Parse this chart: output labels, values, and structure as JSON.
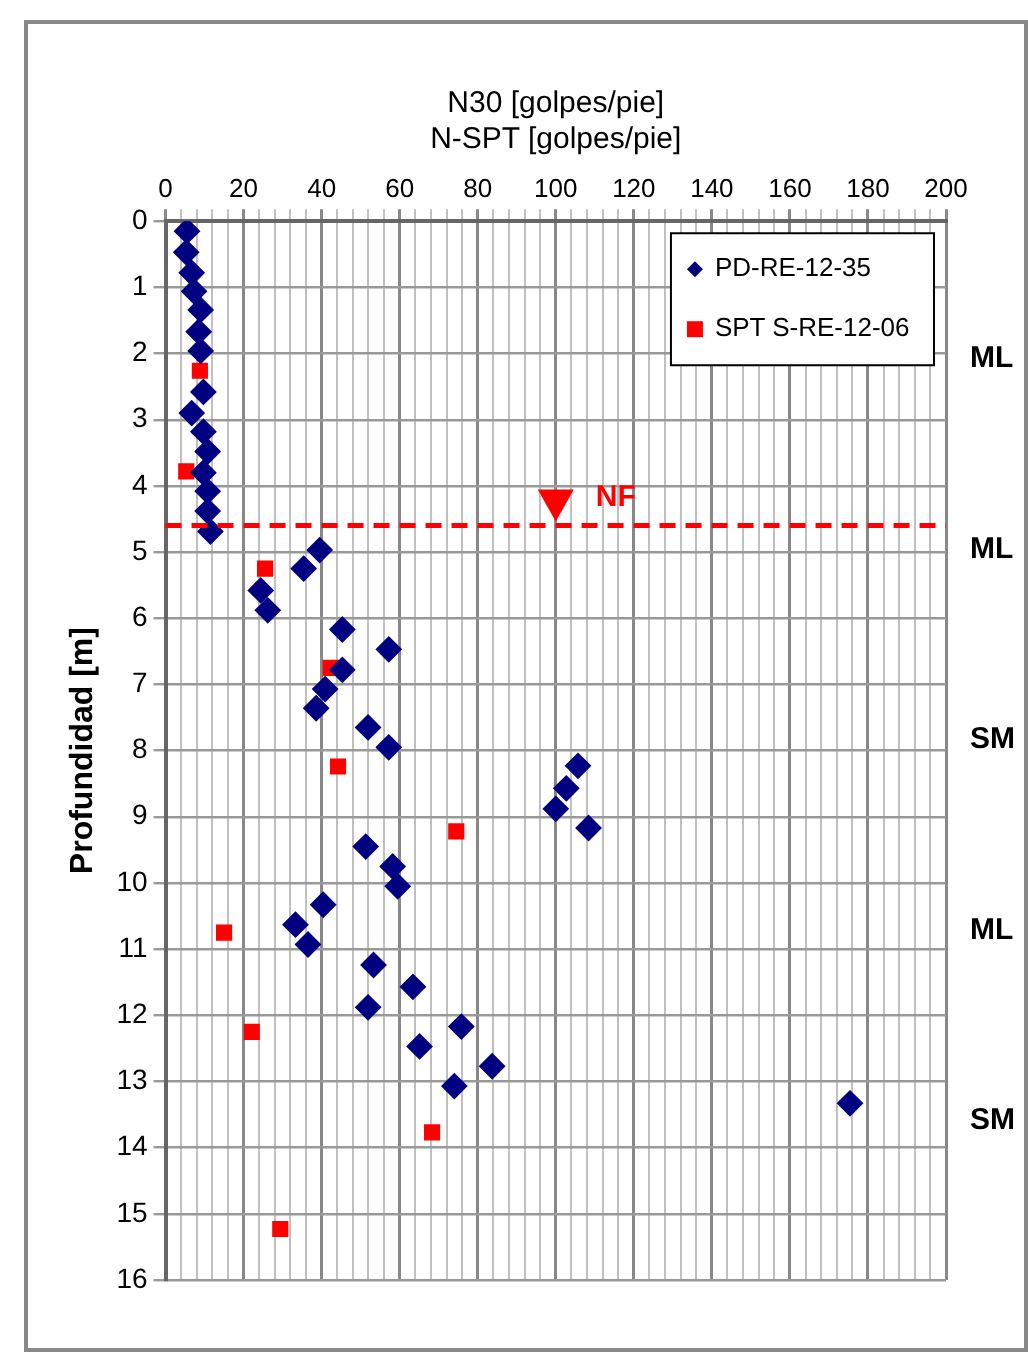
{
  "chart_data": {
    "type": "scatter",
    "xlabel": "N30 [golpes/pie]\nN-SPT [golpes/pie]",
    "ylabel": "Profundidad [m]",
    "series": [
      {
        "name": "PD-RE-12-35",
        "color": "#000080",
        "marker": "diamond",
        "x": [
          5.5,
          5.3,
          6.7,
          7.3,
          9.0,
          8.5,
          9.0,
          9.7,
          6.7,
          9.7,
          10.8,
          9.7,
          10.8,
          10.8,
          11.5,
          39.5,
          35.4,
          24.4,
          26.2,
          45.3,
          57.2,
          45.3,
          40.9,
          38.6,
          51.9,
          57.2,
          105.7,
          102.7,
          100,
          108.4,
          51.3,
          58.2,
          59.5,
          40.4,
          33.3,
          36.5,
          53.3,
          63.4,
          51.9,
          75.8,
          65.1,
          83.7,
          74.0,
          175.4
        ],
        "values": [
          0.15,
          0.47,
          0.78,
          1.06,
          1.34,
          1.67,
          1.96,
          2.58,
          2.9,
          3.18,
          3.48,
          3.8,
          4.08,
          4.38,
          4.69,
          4.97,
          5.25,
          5.58,
          5.88,
          6.17,
          6.47,
          6.78,
          7.07,
          7.36,
          7.65,
          7.95,
          8.23,
          8.57,
          8.88,
          9.17,
          9.45,
          9.75,
          10.05,
          10.33,
          10.63,
          10.93,
          11.24,
          11.57,
          11.88,
          12.17,
          12.47,
          12.77,
          13.07,
          13.33
        ]
      },
      {
        "name": "SPT S-RE-12-06",
        "color": "#ff0000",
        "marker": "square",
        "x": [
          8.8,
          5.3,
          25.5,
          42.3,
          44.2,
          74.5,
          15.0,
          22.1,
          68.3,
          29.4
        ],
        "values": [
          2.26,
          3.78,
          5.25,
          6.75,
          8.24,
          9.22,
          10.75,
          12.25,
          13.77,
          15.23
        ]
      }
    ],
    "xlim": [
      0,
      200
    ],
    "xticks": [
      0,
      {
        "value": 4,
        "label": null
      },
      {
        "value": 8,
        "label": null
      },
      {
        "value": 12,
        "label": null
      },
      {
        "value": 16,
        "label": null
      },
      20,
      {
        "value": 24,
        "label": null
      },
      {
        "value": 28,
        "label": null
      },
      {
        "value": 32,
        "label": null
      },
      {
        "value": 36,
        "label": null
      },
      40,
      {
        "value": 44,
        "label": null
      },
      {
        "value": 48,
        "label": null
      },
      {
        "value": 52,
        "label": null
      },
      {
        "value": 56,
        "label": null
      },
      60,
      {
        "value": 64,
        "label": null
      },
      {
        "value": 68,
        "label": null
      },
      {
        "value": 72,
        "label": null
      },
      {
        "value": 76,
        "label": null
      },
      80,
      {
        "value": 84,
        "label": null
      },
      {
        "value": 88,
        "label": null
      },
      {
        "value": 92,
        "label": null
      },
      {
        "value": 96,
        "label": null
      },
      100,
      {
        "value": 104,
        "label": null
      },
      {
        "value": 108,
        "label": null
      },
      {
        "value": 112,
        "label": null
      },
      {
        "value": 116,
        "label": null
      },
      120,
      {
        "value": 124,
        "label": null
      },
      {
        "value": 128,
        "label": null
      },
      {
        "value": 132,
        "label": null
      },
      {
        "value": 136,
        "label": null
      },
      140,
      {
        "value": 144,
        "label": null
      },
      {
        "value": 148,
        "label": null
      },
      {
        "value": 152,
        "label": null
      },
      {
        "value": 156,
        "label": null
      },
      160,
      {
        "value": 164,
        "label": null
      },
      {
        "value": 168,
        "label": null
      },
      {
        "value": 172,
        "label": null
      },
      {
        "value": 176,
        "label": null
      },
      180,
      {
        "value": 184,
        "label": null
      },
      {
        "value": 188,
        "label": null
      },
      {
        "value": 192,
        "label": null
      },
      {
        "value": 196,
        "label": null
      },
      200
    ],
    "ylim": [
      16,
      0
    ],
    "yticks": [
      0,
      1,
      2,
      3,
      4,
      5,
      6,
      7,
      8,
      9,
      10,
      11,
      12,
      13,
      14,
      15,
      16
    ],
    "grid": true,
    "legend": "top right",
    "ref_lines": [
      {
        "axis": "y",
        "value": 4.6,
        "label": "NF",
        "color": "#ff0000",
        "line_style": "dashed"
      }
    ],
    "annotations": [
      "ML",
      "ML",
      "SM",
      "ML",
      "SM"
    ]
  }
}
